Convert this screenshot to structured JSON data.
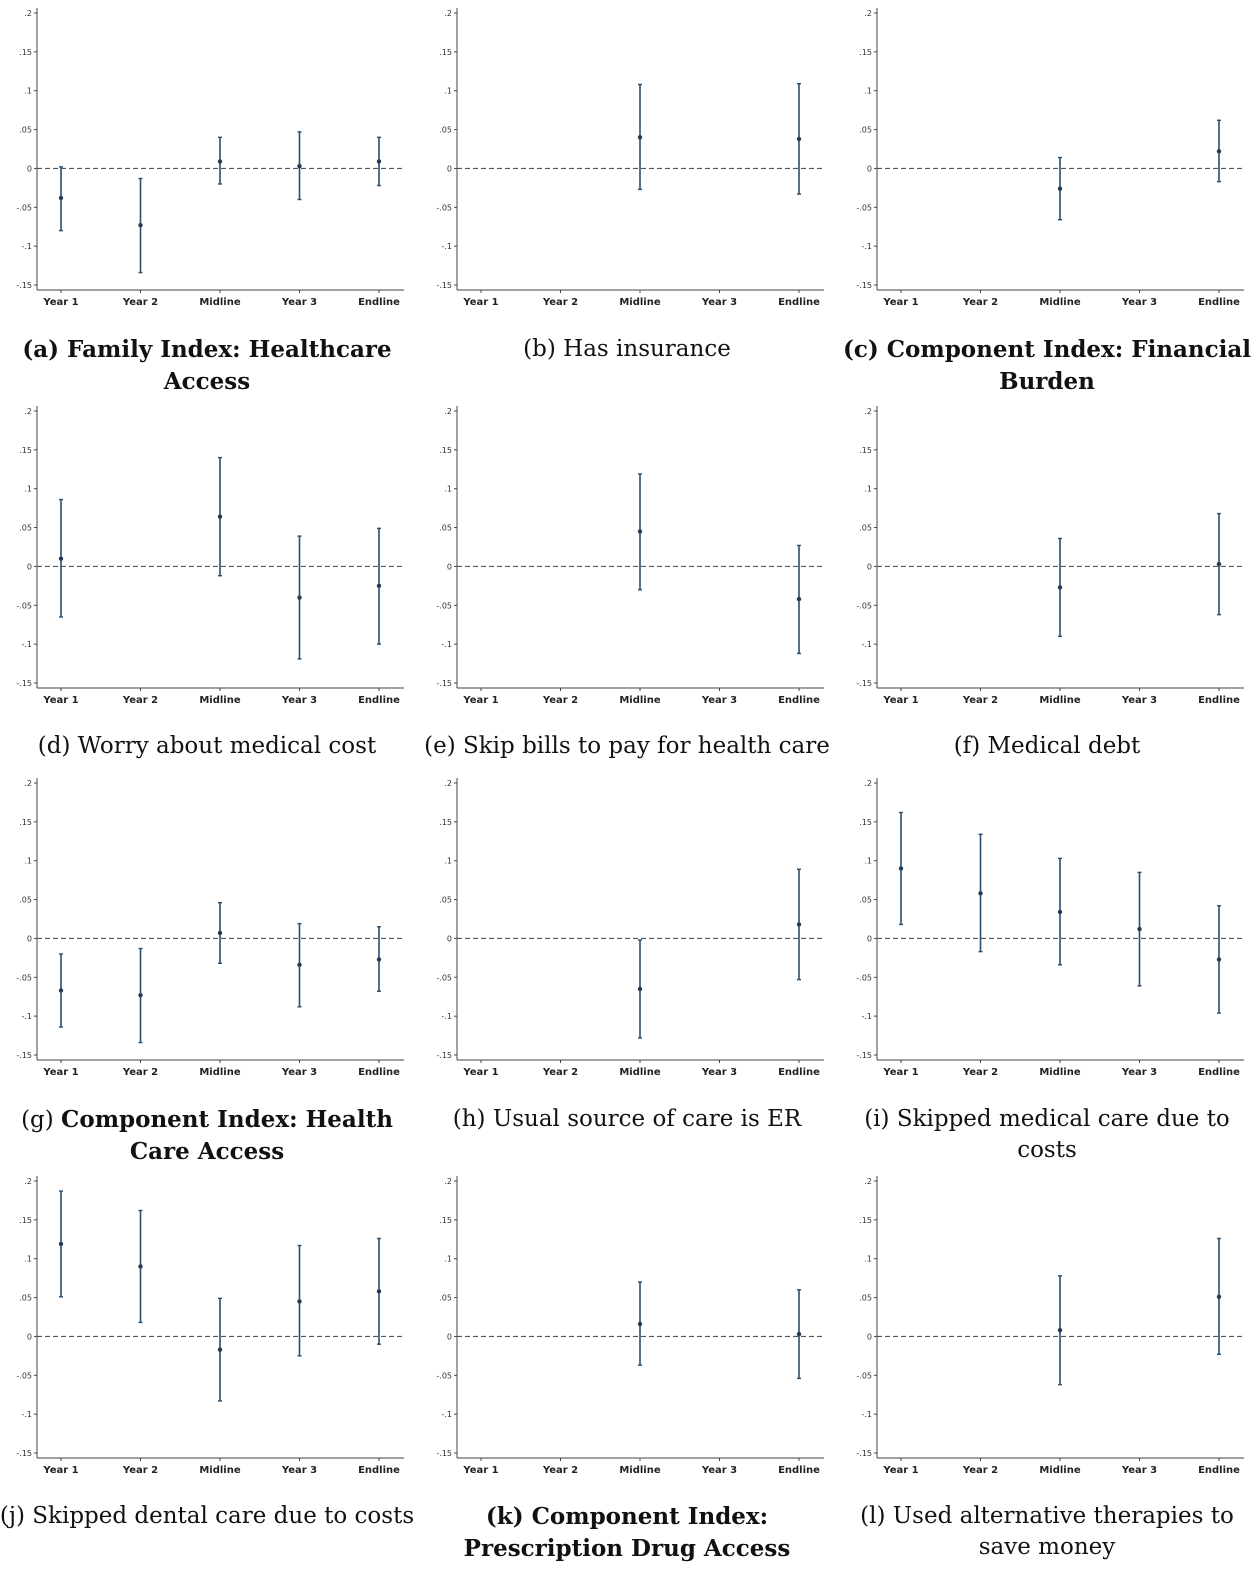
{
  "colors": {
    "ci": "#2a4f6e",
    "point": "#1f3d58",
    "zero_line": "#555555",
    "axis": "#444444"
  },
  "chart_data": [
    {
      "type": "scatter",
      "id": "a",
      "caption_prefix": "(a) ",
      "caption_bold": "Family Index: Healthcare Access",
      "caption_rest": "",
      "categories": [
        "Year 1",
        "Year 2",
        "Midline",
        "Year 3",
        "Endline"
      ],
      "ylim": [
        -0.15,
        0.2
      ],
      "yticks": [
        0.2,
        0.15,
        0.1,
        0.05,
        0,
        -0.05,
        -0.1,
        -0.15
      ],
      "ytick_labels": [
        ".2",
        ".15",
        ".1",
        ".05",
        "0",
        "-.05",
        "-.1",
        "-.15"
      ],
      "points": [
        {
          "category": "Year 1",
          "estimate": -0.038,
          "ci_low": -0.08,
          "ci_high": 0.002
        },
        {
          "category": "Year 2",
          "estimate": -0.073,
          "ci_low": -0.134,
          "ci_high": -0.013
        },
        {
          "category": "Midline",
          "estimate": 0.009,
          "ci_low": -0.02,
          "ci_high": 0.04
        },
        {
          "category": "Year 3",
          "estimate": 0.003,
          "ci_low": -0.04,
          "ci_high": 0.047
        },
        {
          "category": "Endline",
          "estimate": 0.009,
          "ci_low": -0.022,
          "ci_high": 0.04
        }
      ]
    },
    {
      "type": "scatter",
      "id": "b",
      "caption_prefix": "(b) Has insurance",
      "caption_bold": "",
      "caption_rest": "",
      "categories": [
        "Year 1",
        "Year 2",
        "Midline",
        "Year 3",
        "Endline"
      ],
      "ylim": [
        -0.15,
        0.2
      ],
      "yticks": [
        0.2,
        0.15,
        0.1,
        0.05,
        0,
        -0.05,
        -0.1,
        -0.15
      ],
      "ytick_labels": [
        ".2",
        ".15",
        ".1",
        ".05",
        "0",
        "-.05",
        "-.1",
        "-.15"
      ],
      "points": [
        {
          "category": "Midline",
          "estimate": 0.04,
          "ci_low": -0.027,
          "ci_high": 0.108
        },
        {
          "category": "Endline",
          "estimate": 0.038,
          "ci_low": -0.033,
          "ci_high": 0.109
        }
      ]
    },
    {
      "type": "scatter",
      "id": "c",
      "caption_prefix": "(c) ",
      "caption_bold": "Component Index: Financial Burden",
      "caption_rest": "",
      "categories": [
        "Year 1",
        "Year 2",
        "Midline",
        "Year 3",
        "Endline"
      ],
      "ylim": [
        -0.15,
        0.2
      ],
      "yticks": [
        0.2,
        0.15,
        0.1,
        0.05,
        0,
        -0.05,
        -0.1,
        -0.15
      ],
      "ytick_labels": [
        ".2",
        ".15",
        ".1",
        ".05",
        "0",
        "-.05",
        "-.1",
        "-.15"
      ],
      "points": [
        {
          "category": "Midline",
          "estimate": -0.026,
          "ci_low": -0.066,
          "ci_high": 0.014
        },
        {
          "category": "Endline",
          "estimate": 0.022,
          "ci_low": -0.017,
          "ci_high": 0.062
        }
      ]
    },
    {
      "type": "scatter",
      "id": "d",
      "caption_prefix": "(d) Worry about medical cost",
      "caption_bold": "",
      "caption_rest": "",
      "categories": [
        "Year 1",
        "Year 2",
        "Midline",
        "Year 3",
        "Endline"
      ],
      "ylim": [
        -0.15,
        0.2
      ],
      "yticks": [
        0.2,
        0.15,
        0.1,
        0.05,
        0,
        -0.05,
        -0.1,
        -0.15
      ],
      "ytick_labels": [
        ".2",
        ".15",
        ".1",
        ".05",
        "0",
        "-.05",
        "-.1",
        "-.15"
      ],
      "points": [
        {
          "category": "Year 1",
          "estimate": 0.01,
          "ci_low": -0.065,
          "ci_high": 0.086
        },
        {
          "category": "Midline",
          "estimate": 0.064,
          "ci_low": -0.012,
          "ci_high": 0.14
        },
        {
          "category": "Year 3",
          "estimate": -0.04,
          "ci_low": -0.119,
          "ci_high": 0.039
        },
        {
          "category": "Endline",
          "estimate": -0.025,
          "ci_low": -0.1,
          "ci_high": 0.049
        }
      ]
    },
    {
      "type": "scatter",
      "id": "e",
      "caption_prefix": "(e) Skip bills to pay for health care",
      "caption_bold": "",
      "caption_rest": "",
      "categories": [
        "Year 1",
        "Year 2",
        "Midline",
        "Year 3",
        "Endline"
      ],
      "ylim": [
        -0.15,
        0.2
      ],
      "yticks": [
        0.2,
        0.15,
        0.1,
        0.05,
        0,
        -0.05,
        -0.1,
        -0.15
      ],
      "ytick_labels": [
        ".2",
        ".15",
        ".1",
        ".05",
        "0",
        "-.05",
        "-.1",
        "-.15"
      ],
      "points": [
        {
          "category": "Midline",
          "estimate": 0.045,
          "ci_low": -0.03,
          "ci_high": 0.119
        },
        {
          "category": "Endline",
          "estimate": -0.042,
          "ci_low": -0.112,
          "ci_high": 0.027
        }
      ]
    },
    {
      "type": "scatter",
      "id": "f",
      "caption_prefix": "(f) Medical debt",
      "caption_bold": "",
      "caption_rest": "",
      "categories": [
        "Year 1",
        "Year 2",
        "Midline",
        "Year 3",
        "Endline"
      ],
      "ylim": [
        -0.15,
        0.2
      ],
      "yticks": [
        0.2,
        0.15,
        0.1,
        0.05,
        0,
        -0.05,
        -0.1,
        -0.15
      ],
      "ytick_labels": [
        ".2",
        ".15",
        ".1",
        ".05",
        "0",
        "-.05",
        "-.1",
        "-.15"
      ],
      "points": [
        {
          "category": "Midline",
          "estimate": -0.027,
          "ci_low": -0.09,
          "ci_high": 0.036
        },
        {
          "category": "Endline",
          "estimate": 0.003,
          "ci_low": -0.062,
          "ci_high": 0.068
        }
      ]
    },
    {
      "type": "scatter",
      "id": "g",
      "caption_prefix": "(g) ",
      "caption_bold": "Component Index: Health Care Access",
      "caption_rest": "",
      "categories": [
        "Year 1",
        "Year 2",
        "Midline",
        "Year 3",
        "Endline"
      ],
      "ylim": [
        -0.15,
        0.2
      ],
      "yticks": [
        0.2,
        0.15,
        0.1,
        0.05,
        0,
        -0.05,
        -0.1,
        -0.15
      ],
      "ytick_labels": [
        ".2",
        ".15",
        ".1",
        ".05",
        "0",
        "-.05",
        "-.1",
        "-.15"
      ],
      "points": [
        {
          "category": "Year 1",
          "estimate": -0.067,
          "ci_low": -0.114,
          "ci_high": -0.02
        },
        {
          "category": "Year 2",
          "estimate": -0.073,
          "ci_low": -0.134,
          "ci_high": -0.013
        },
        {
          "category": "Midline",
          "estimate": 0.007,
          "ci_low": -0.032,
          "ci_high": 0.046
        },
        {
          "category": "Year 3",
          "estimate": -0.034,
          "ci_low": -0.088,
          "ci_high": 0.019
        },
        {
          "category": "Endline",
          "estimate": -0.027,
          "ci_low": -0.068,
          "ci_high": 0.015
        }
      ]
    },
    {
      "type": "scatter",
      "id": "h",
      "caption_prefix": "(h) Usual source of care is ER",
      "caption_bold": "",
      "caption_rest": "",
      "categories": [
        "Year 1",
        "Year 2",
        "Midline",
        "Year 3",
        "Endline"
      ],
      "ylim": [
        -0.15,
        0.2
      ],
      "yticks": [
        0.2,
        0.15,
        0.1,
        0.05,
        0,
        -0.05,
        -0.1,
        -0.15
      ],
      "ytick_labels": [
        ".2",
        ".15",
        ".1",
        ".05",
        "0",
        "-.05",
        "-.1",
        "-.15"
      ],
      "points": [
        {
          "category": "Midline",
          "estimate": -0.065,
          "ci_low": -0.128,
          "ci_high": -0.002
        },
        {
          "category": "Endline",
          "estimate": 0.018,
          "ci_low": -0.053,
          "ci_high": 0.089
        }
      ]
    },
    {
      "type": "scatter",
      "id": "i",
      "caption_prefix": "(i) Skipped medical care due to costs",
      "caption_bold": "",
      "caption_rest": "",
      "categories": [
        "Year 1",
        "Year 2",
        "Midline",
        "Year 3",
        "Endline"
      ],
      "ylim": [
        -0.15,
        0.2
      ],
      "yticks": [
        0.2,
        0.15,
        0.1,
        0.05,
        0,
        -0.05,
        -0.1,
        -0.15
      ],
      "ytick_labels": [
        ".2",
        ".15",
        ".1",
        ".05",
        "0",
        "-.05",
        "-.1",
        "-.15"
      ],
      "points": [
        {
          "category": "Year 1",
          "estimate": 0.09,
          "ci_low": 0.018,
          "ci_high": 0.162
        },
        {
          "category": "Year 2",
          "estimate": 0.058,
          "ci_low": -0.017,
          "ci_high": 0.134
        },
        {
          "category": "Midline",
          "estimate": 0.034,
          "ci_low": -0.034,
          "ci_high": 0.103
        },
        {
          "category": "Year 3",
          "estimate": 0.012,
          "ci_low": -0.061,
          "ci_high": 0.085
        },
        {
          "category": "Endline",
          "estimate": -0.027,
          "ci_low": -0.096,
          "ci_high": 0.042
        }
      ]
    },
    {
      "type": "scatter",
      "id": "j",
      "caption_prefix": "(j) Skipped dental care due to costs",
      "caption_bold": "",
      "caption_rest": "",
      "categories": [
        "Year 1",
        "Year 2",
        "Midline",
        "Year 3",
        "Endline"
      ],
      "ylim": [
        -0.15,
        0.2
      ],
      "yticks": [
        0.2,
        0.15,
        0.1,
        0.05,
        0,
        -0.05,
        -0.1,
        -0.15
      ],
      "ytick_labels": [
        ".2",
        ".15",
        ".1",
        ".05",
        "0",
        "-.05",
        "-.1",
        "-.15"
      ],
      "points": [
        {
          "category": "Year 1",
          "estimate": 0.119,
          "ci_low": 0.051,
          "ci_high": 0.187
        },
        {
          "category": "Year 2",
          "estimate": 0.09,
          "ci_low": 0.018,
          "ci_high": 0.162
        },
        {
          "category": "Midline",
          "estimate": -0.017,
          "ci_low": -0.083,
          "ci_high": 0.049
        },
        {
          "category": "Year 3",
          "estimate": 0.045,
          "ci_low": -0.025,
          "ci_high": 0.117
        },
        {
          "category": "Endline",
          "estimate": 0.058,
          "ci_low": -0.01,
          "ci_high": 0.126
        }
      ]
    },
    {
      "type": "scatter",
      "id": "k",
      "caption_prefix": "(k) ",
      "caption_bold": "Component Index: Prescription Drug Access",
      "caption_rest": "",
      "categories": [
        "Year 1",
        "Year 2",
        "Midline",
        "Year 3",
        "Endline"
      ],
      "ylim": [
        -0.15,
        0.2
      ],
      "yticks": [
        0.2,
        0.15,
        0.1,
        0.05,
        0,
        -0.05,
        -0.1,
        -0.15
      ],
      "ytick_labels": [
        ".2",
        ".15",
        ".1",
        ".05",
        "0",
        "-.05",
        "-.1",
        "-.15"
      ],
      "points": [
        {
          "category": "Midline",
          "estimate": 0.016,
          "ci_low": -0.037,
          "ci_high": 0.07
        },
        {
          "category": "Endline",
          "estimate": 0.003,
          "ci_low": -0.054,
          "ci_high": 0.06
        }
      ]
    },
    {
      "type": "scatter",
      "id": "l",
      "caption_prefix": "(l) Used alternative therapies to save money",
      "caption_bold": "",
      "caption_rest": "",
      "categories": [
        "Year 1",
        "Year 2",
        "Midline",
        "Year 3",
        "Endline"
      ],
      "ylim": [
        -0.15,
        0.2
      ],
      "yticks": [
        0.2,
        0.15,
        0.1,
        0.05,
        0,
        -0.05,
        -0.1,
        -0.15
      ],
      "ytick_labels": [
        ".2",
        ".15",
        ".1",
        ".05",
        "0",
        "-.05",
        "-.1",
        "-.15"
      ],
      "points": [
        {
          "category": "Midline",
          "estimate": 0.008,
          "ci_low": -0.062,
          "ci_high": 0.078
        },
        {
          "category": "Endline",
          "estimate": 0.051,
          "ci_low": -0.023,
          "ci_high": 0.126
        }
      ]
    }
  ]
}
